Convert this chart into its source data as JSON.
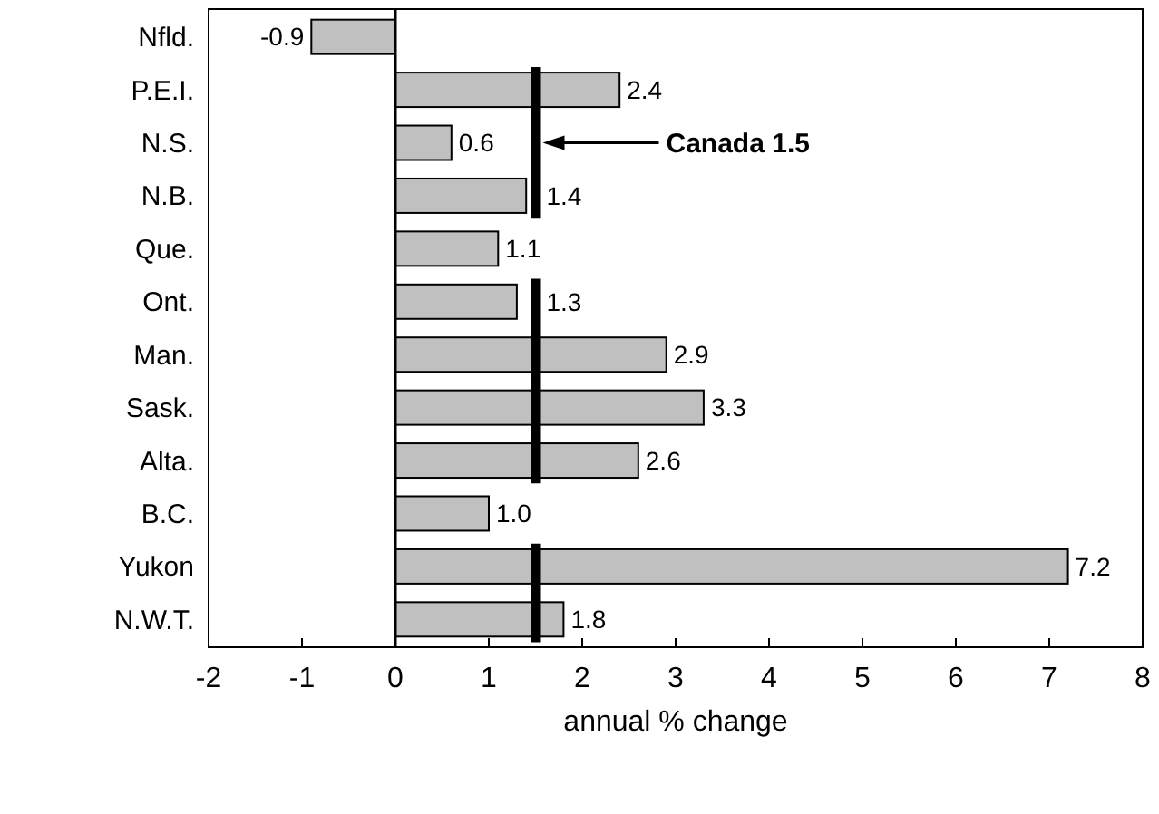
{
  "chart_data": {
    "type": "bar",
    "orientation": "horizontal",
    "xlabel": "annual % change",
    "categories": [
      "Nfld.",
      "P.E.I.",
      "N.S.",
      "N.B.",
      "Que.",
      "Ont.",
      "Man.",
      "Sask.",
      "Alta.",
      "B.C.",
      "Yukon",
      "N.W.T."
    ],
    "values": [
      -0.9,
      2.4,
      0.6,
      1.4,
      1.1,
      1.3,
      2.9,
      3.3,
      2.6,
      1.0,
      7.2,
      1.8
    ],
    "value_labels": [
      "-0.9",
      "2.4",
      "0.6",
      "1.4",
      "1.1",
      "1.3",
      "2.9",
      "3.3",
      "2.6",
      "1.0",
      "7.2",
      "1.8"
    ],
    "color": "#c0c0c0",
    "xlim": [
      -2,
      8
    ],
    "xticks": [
      -2,
      -1,
      0,
      1,
      2,
      3,
      4,
      5,
      6,
      7,
      8
    ],
    "ref_lines": [
      {
        "axis": "x",
        "value": 1.5,
        "label": "Canada 1.5",
        "color": "#000000"
      },
      {
        "axis": "x",
        "value": 0,
        "color": "#000000"
      }
    ],
    "grid": false
  }
}
